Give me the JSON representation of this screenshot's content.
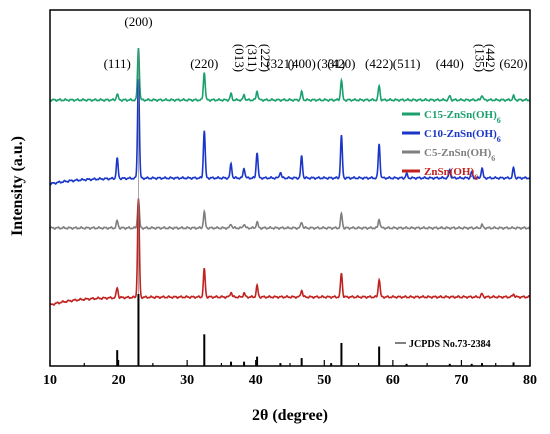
{
  "chart_data": {
    "type": "line",
    "xlabel": "2θ (degree)",
    "ylabel": "Intensity (a.u.)",
    "xlim": [
      10,
      80
    ],
    "x_ticks": [
      10,
      20,
      30,
      40,
      50,
      60,
      70,
      80
    ],
    "grid": false,
    "legend_position": "right",
    "hkl_labels": [
      {
        "label": "(111)",
        "x": 19.8
      },
      {
        "label": "(200)",
        "x": 22.9
      },
      {
        "label": "(220)",
        "x": 32.5
      },
      {
        "label": "(013)",
        "x": 36.4
      },
      {
        "label": "(311)",
        "x": 38.3
      },
      {
        "label": "(222)",
        "x": 40.2
      },
      {
        "label": "(321)",
        "x": 43.6
      },
      {
        "label": "(400)",
        "x": 46.7
      },
      {
        "label": "(331)",
        "x": 51.0
      },
      {
        "label": "(420)",
        "x": 52.5
      },
      {
        "label": "(422)",
        "x": 58.0
      },
      {
        "label": "(511)",
        "x": 62.0
      },
      {
        "label": "(440)",
        "x": 68.3
      },
      {
        "label": "(135)",
        "x": 71.5
      },
      {
        "label": "(442)",
        "x": 73.0
      },
      {
        "label": "(620)",
        "x": 77.6
      }
    ],
    "series": [
      {
        "name": "C15-ZnSn(OH)",
        "subscript": "6",
        "color": "#1aa06d",
        "baseline": 0.9,
        "slope": 0,
        "peaks": [
          [
            19.8,
            0.3
          ],
          [
            22.9,
            2.6
          ],
          [
            32.5,
            1.4
          ],
          [
            36.4,
            0.3
          ],
          [
            38.3,
            0.25
          ],
          [
            40.2,
            0.45
          ],
          [
            46.7,
            0.4
          ],
          [
            52.5,
            1.0
          ],
          [
            58.0,
            0.7
          ],
          [
            68.3,
            0.2
          ],
          [
            73.0,
            0.25
          ],
          [
            77.6,
            0.2
          ]
        ]
      },
      {
        "name": "C10-ZnSn(OH)",
        "subscript": "6",
        "color": "#1a36c8",
        "baseline": 1.95,
        "slope": -0.15,
        "peaks": [
          [
            19.8,
            1.0
          ],
          [
            22.9,
            5.0
          ],
          [
            32.5,
            2.4
          ],
          [
            36.4,
            0.7
          ],
          [
            38.3,
            0.5
          ],
          [
            40.2,
            1.3
          ],
          [
            43.6,
            0.3
          ],
          [
            46.7,
            1.1
          ],
          [
            52.5,
            2.1
          ],
          [
            58.0,
            1.7
          ],
          [
            62.0,
            0.2
          ],
          [
            68.3,
            0.4
          ],
          [
            71.5,
            0.3
          ],
          [
            73.0,
            0.5
          ],
          [
            77.6,
            0.5
          ]
        ]
      },
      {
        "name": "C5-ZnSn(OH)",
        "subscript": "6",
        "color": "#7f7f7f",
        "baseline": 1.75,
        "slope": 0,
        "peaks": [
          [
            19.8,
            0.35
          ],
          [
            22.9,
            1.4
          ],
          [
            32.5,
            0.8
          ],
          [
            36.4,
            0.2
          ],
          [
            38.3,
            0.2
          ],
          [
            40.2,
            0.3
          ],
          [
            46.7,
            0.3
          ],
          [
            52.5,
            0.7
          ],
          [
            58.0,
            0.45
          ],
          [
            73.0,
            0.15
          ]
        ]
      },
      {
        "name": "ZnSn(OH)",
        "subscript": "6",
        "color": "#c0221f",
        "baseline": 1.05,
        "slope": -0.2,
        "peaks": [
          [
            19.8,
            0.5
          ],
          [
            22.9,
            4.9
          ],
          [
            32.5,
            1.4
          ],
          [
            36.4,
            0.25
          ],
          [
            38.3,
            0.2
          ],
          [
            40.2,
            0.55
          ],
          [
            46.7,
            0.35
          ],
          [
            52.5,
            1.2
          ],
          [
            58.0,
            0.9
          ],
          [
            73.0,
            0.15
          ],
          [
            77.6,
            0.15
          ]
        ]
      }
    ],
    "reference": {
      "name": "JCPDS No.73-2384",
      "color": "#000000",
      "sticks": [
        [
          19.8,
          0.22
        ],
        [
          22.9,
          1.0
        ],
        [
          32.5,
          0.44
        ],
        [
          36.4,
          0.06
        ],
        [
          38.3,
          0.06
        ],
        [
          40.2,
          0.13
        ],
        [
          43.6,
          0.04
        ],
        [
          46.7,
          0.11
        ],
        [
          51.0,
          0.04
        ],
        [
          52.5,
          0.32
        ],
        [
          58.0,
          0.27
        ],
        [
          62.0,
          0.03
        ],
        [
          68.3,
          0.03
        ],
        [
          71.5,
          0.03
        ],
        [
          73.0,
          0.04
        ],
        [
          77.6,
          0.05
        ]
      ]
    }
  }
}
